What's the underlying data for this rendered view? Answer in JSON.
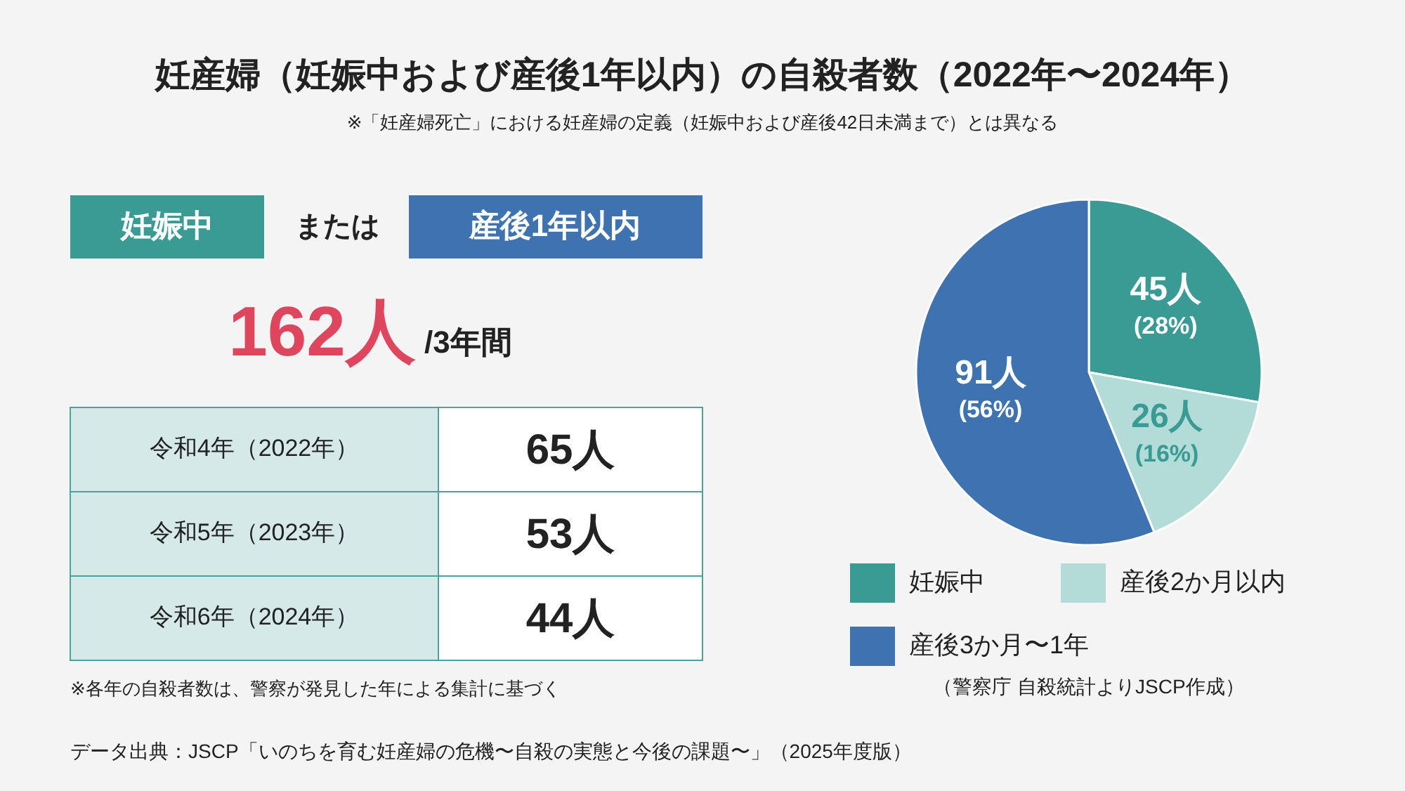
{
  "chart_data": [
    {
      "type": "other",
      "title": "妊産婦（妊娠中および産後1年以内）の自殺者数（2022年〜2024年）",
      "subtitle": "※「妊産婦死亡」における妊産婦の定義（妊娠中および産後42日未満まで）とは異なる",
      "annotations": [
        "妊娠中",
        "または",
        "産後1年以内",
        "162人",
        "/3年間",
        "※各年の自殺者数は、警察が発見した年による集計に基づく",
        "データ出典：JSCP「いのちを育む妊産婦の危機〜自殺の実態と今後の課題〜」（2025年度版）"
      ],
      "colors": [
        "#3a9a94",
        "#3f72b0",
        "#e0455e"
      ]
    },
    {
      "type": "other",
      "annotations": [
        "令和4年（2022年）",
        "65人",
        "令和5年（2023年）",
        "53人",
        "令和6年（2024年）",
        "44人"
      ],
      "colors": [
        "#d4e9e8",
        "#ffffff"
      ]
    },
    {
      "type": "pie",
      "categories": [
        "妊娠中",
        "産後2か月以内",
        "産後3か月〜1年"
      ],
      "values": [
        45,
        26,
        91
      ],
      "value_labels": [
        "45人\n(28%)",
        "26人\n(16%)",
        "91人\n(56%)"
      ],
      "colors": [
        "#3a9a94",
        "#b3dcd8",
        "#3f72b0"
      ],
      "legend": "bottom",
      "annotations": [
        "（警察庁 自殺統計よりJSCP作成）"
      ]
    }
  ]
}
